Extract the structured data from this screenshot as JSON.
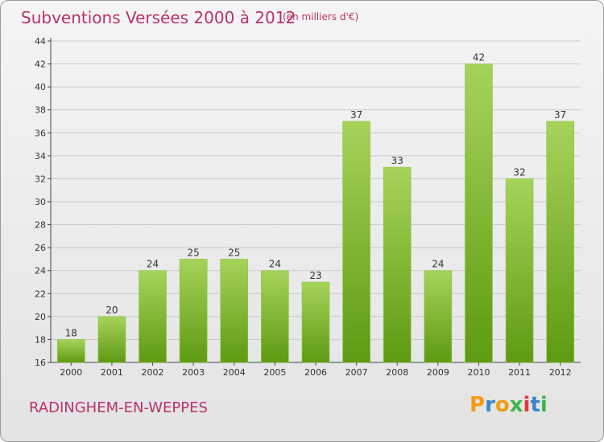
{
  "header": {
    "title": "Subventions Versées 2000 à 2012",
    "subtitle": "(en milliers d'€)"
  },
  "footer": {
    "city": "RADINGHEM-EN-WEPPES",
    "logo": "Proxiti"
  },
  "colors": {
    "accent": "#b8336a",
    "bar_light": "#a6d35a",
    "bar_dark": "#5e9a12",
    "grid": "#c9c9c9",
    "logo_letters": [
      "#f39c12",
      "#3a86c8",
      "#f39c12",
      "#3ab54a",
      "#e23a3a",
      "#3a86c8",
      "#3ab54a"
    ]
  },
  "chart_data": {
    "type": "bar",
    "categories": [
      "2000",
      "2001",
      "2002",
      "2003",
      "2004",
      "2005",
      "2006",
      "2007",
      "2008",
      "2009",
      "2010",
      "2011",
      "2012"
    ],
    "values": [
      18,
      20,
      24,
      25,
      25,
      24,
      23,
      37,
      33,
      24,
      42,
      32,
      37
    ],
    "yticks": [
      16,
      18,
      20,
      22,
      24,
      26,
      28,
      30,
      32,
      34,
      36,
      38,
      40,
      42,
      44
    ],
    "ylim": [
      16,
      44
    ],
    "grid": true,
    "data_labels": true
  }
}
